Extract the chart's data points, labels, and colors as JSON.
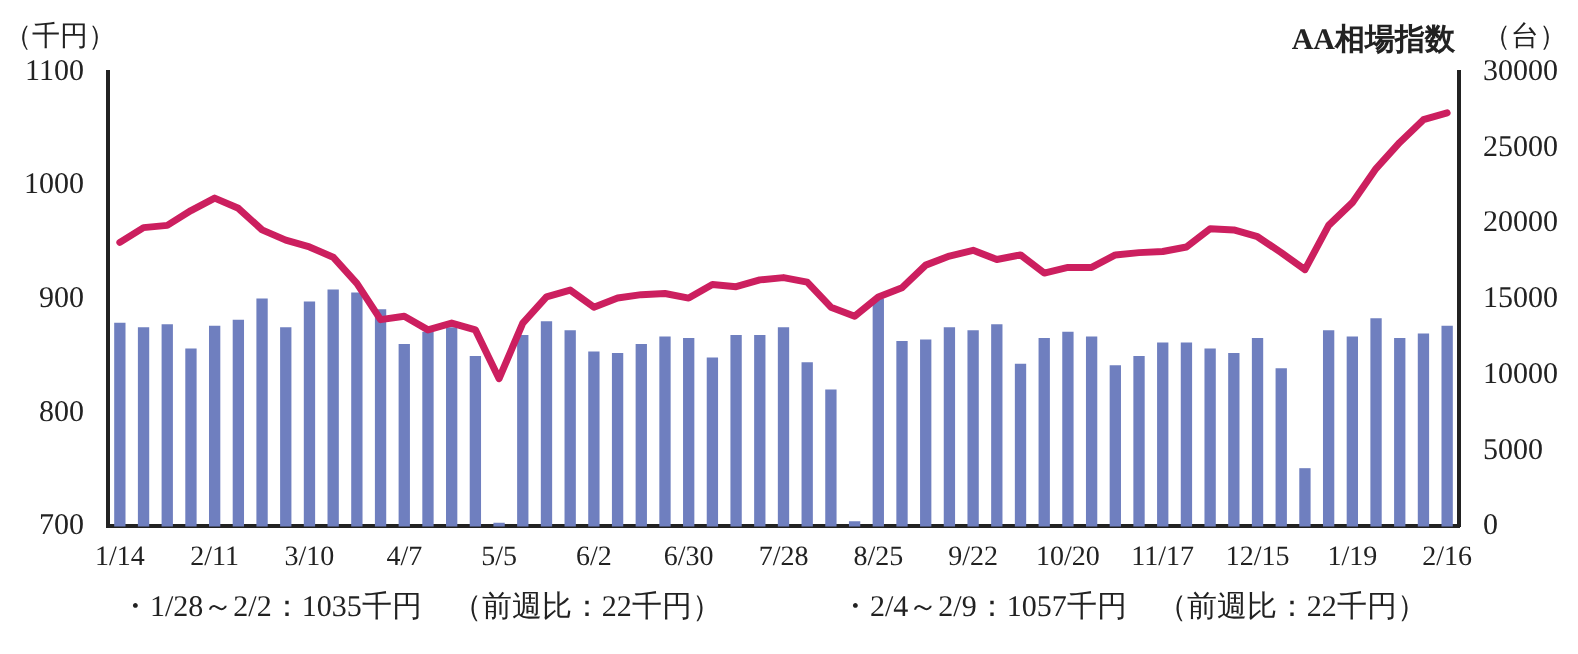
{
  "chart_data": {
    "type": "bar",
    "title": "AA相場指数",
    "ylabel": "（千円）",
    "y2label": "（台）",
    "categories": [
      "1/14",
      null,
      null,
      null,
      "2/11",
      null,
      null,
      null,
      "3/10",
      null,
      null,
      null,
      "4/7",
      null,
      null,
      null,
      "5/5",
      null,
      null,
      null,
      "6/2",
      null,
      null,
      null,
      "6/30",
      null,
      null,
      null,
      "7/28",
      null,
      null,
      null,
      "8/25",
      null,
      null,
      null,
      "9/22",
      null,
      null,
      null,
      "10/20",
      null,
      null,
      null,
      "11/17",
      null,
      null,
      null,
      "12/15",
      null,
      null,
      null,
      "1/19",
      null,
      null,
      null,
      "2/16"
    ],
    "series": [
      {
        "axis": "y2",
        "color": "#6f7fbf",
        "values": [
          13400,
          13100,
          13300,
          11700,
          13200,
          13600,
          15000,
          13100,
          14800,
          15600,
          15400,
          14300,
          12000,
          12800,
          13100,
          11200,
          200,
          12600,
          13500,
          12900,
          11500,
          11400,
          12000,
          12500,
          12400,
          11100,
          12600,
          12600,
          13100,
          10800,
          9000,
          300,
          15000,
          12200,
          12300,
          13100,
          12900,
          13300,
          10700,
          12400,
          12800,
          12500,
          10600,
          11200,
          12100,
          12100,
          11700,
          11400,
          12400,
          10400,
          3800,
          12900,
          12500,
          13700,
          12400,
          12700,
          13200
        ]
      },
      {
        "type": "line",
        "axis": "y",
        "color": "#cc1f5f",
        "values": [
          950,
          963,
          965,
          978,
          989,
          980,
          961,
          952,
          946,
          937,
          914,
          882,
          885,
          873,
          879,
          873,
          830,
          879,
          902,
          908,
          893,
          901,
          904,
          905,
          901,
          913,
          911,
          917,
          919,
          915,
          893,
          885,
          902,
          910,
          930,
          938,
          943,
          935,
          939,
          923,
          928,
          928,
          939,
          941,
          942,
          946,
          962,
          961,
          955,
          941,
          926,
          965,
          985,
          1015,
          1038,
          1058,
          1064
        ]
      }
    ],
    "ylim": [
      700,
      1100
    ],
    "yticks": [
      700,
      800,
      900,
      1000,
      1100
    ],
    "y2lim": [
      0,
      30000
    ],
    "y2ticks": [
      0,
      5000,
      10000,
      15000,
      20000,
      25000,
      30000
    ],
    "grid": false,
    "legend": false,
    "marker": "none",
    "line_style": "solid",
    "annotations": [
      "・1/28～2/2：1035千円　（前週比：22千円）",
      "・2/4～2/9：1057千円　（前週比：22千円）"
    ]
  }
}
